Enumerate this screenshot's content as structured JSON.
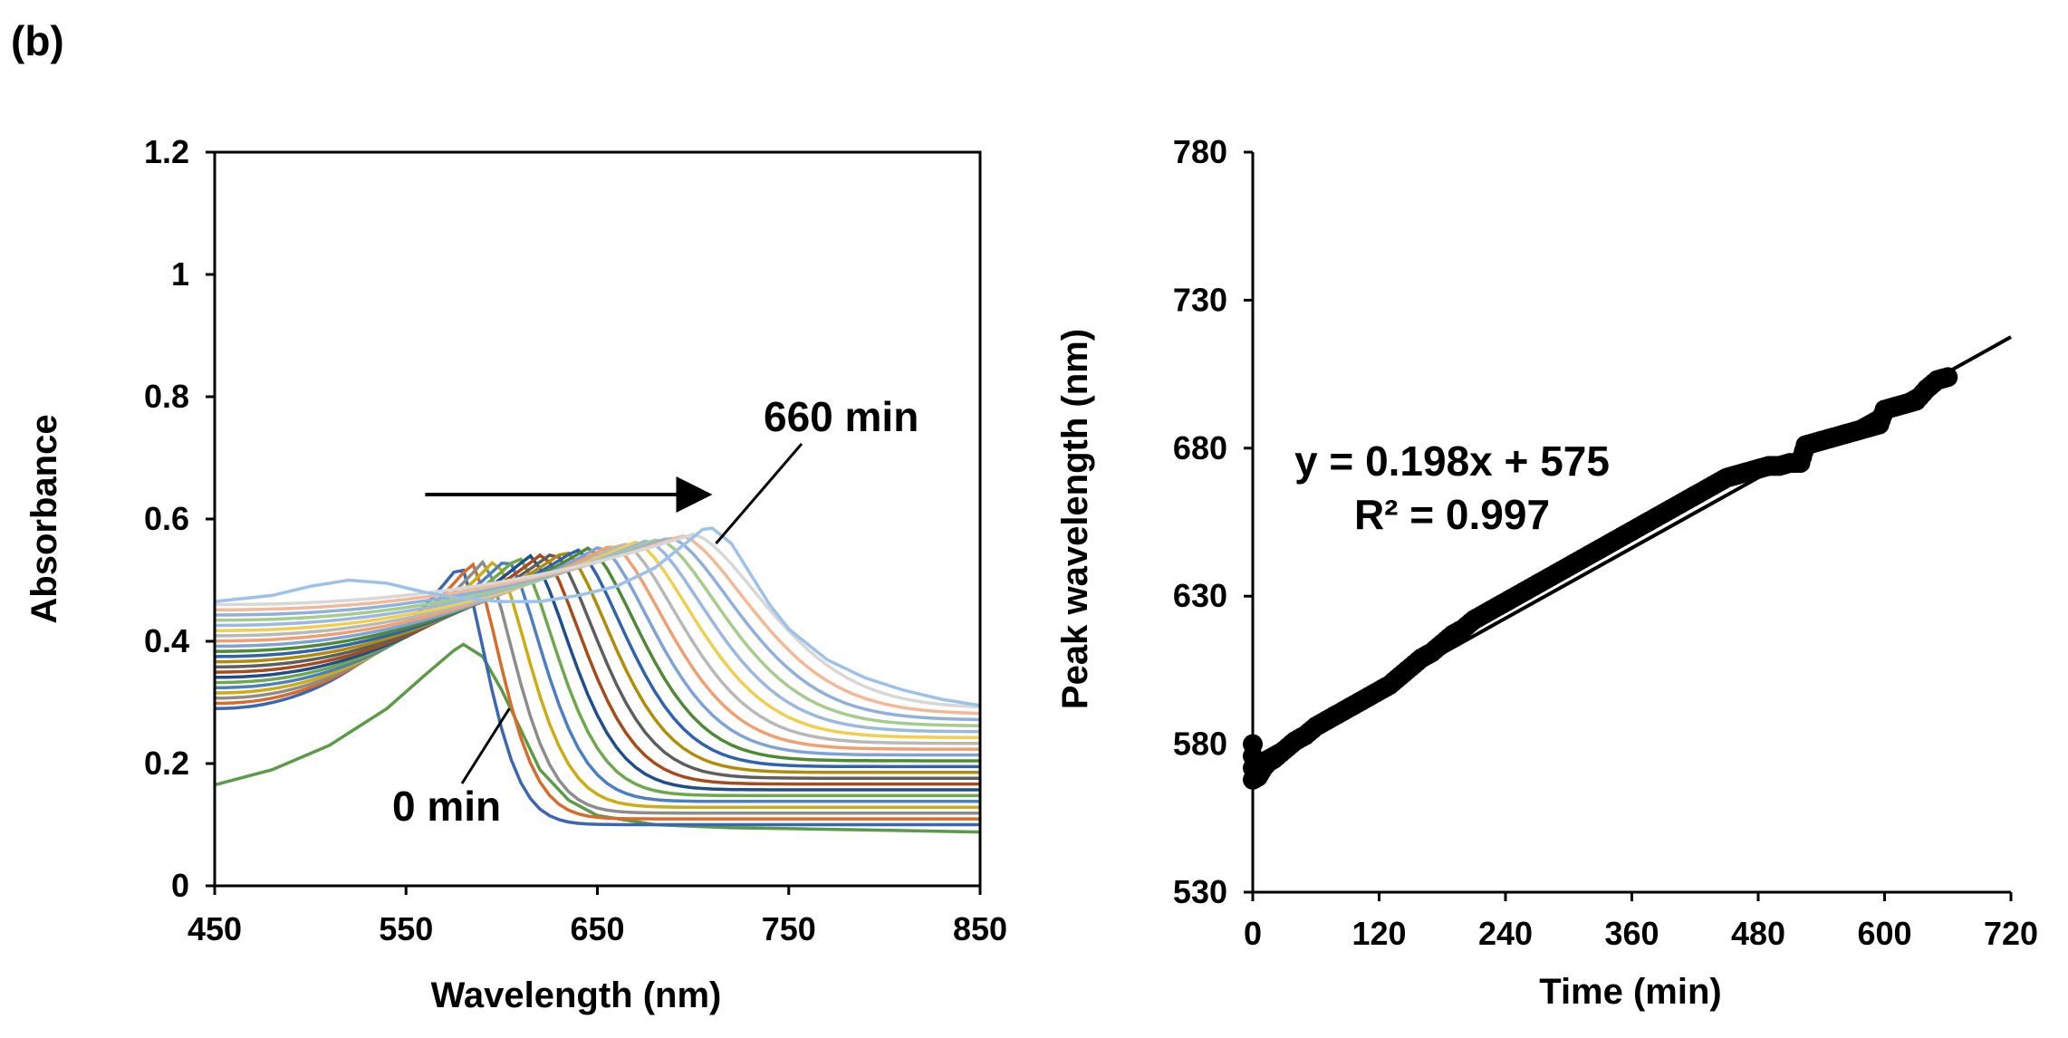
{
  "panel_label": "(b)",
  "chart_data": [
    {
      "type": "line",
      "title": "",
      "xlabel": "Wavelength (nm)",
      "ylabel": "Absorbance",
      "xlim": [
        450,
        850
      ],
      "ylim": [
        0,
        1.2
      ],
      "xticks": [
        "450",
        "550",
        "650",
        "750",
        "850"
      ],
      "yticks": [
        "0",
        "0.2",
        "0.4",
        "0.6",
        "0.8",
        "1",
        "1.2"
      ],
      "time_range_min": [
        0,
        660
      ],
      "spectrum_count": 23,
      "series_colors": [
        "#5b9a47",
        "#3c67b0",
        "#d86a2a",
        "#8c8c8c",
        "#ccac12",
        "#4a7fc2",
        "#6fa84c",
        "#1f4e8c",
        "#a84b1a",
        "#5e5e5e",
        "#b08c0a",
        "#2f63ad",
        "#4e8a34",
        "#7fa3d6",
        "#f0a070",
        "#b8b8b8",
        "#f0cf50",
        "#9bb8e2",
        "#a5cc8c",
        "#8fb0dd",
        "#f5b896",
        "#d7d7d7",
        "#9cc1ea"
      ],
      "series": [
        {
          "name": "0 min",
          "x": [
            450,
            480,
            510,
            540,
            560,
            575,
            580,
            590,
            600,
            610,
            620,
            635,
            650,
            680,
            720,
            760,
            800,
            850
          ],
          "y": [
            0.165,
            0.19,
            0.23,
            0.29,
            0.345,
            0.385,
            0.395,
            0.375,
            0.32,
            0.255,
            0.19,
            0.14,
            0.115,
            0.1,
            0.095,
            0.093,
            0.091,
            0.088
          ]
        },
        {
          "name": "660 min",
          "x": [
            450,
            480,
            500,
            520,
            540,
            560,
            580,
            600,
            620,
            640,
            660,
            680,
            690,
            700,
            705,
            710,
            720,
            730,
            740,
            750,
            770,
            790,
            810,
            830,
            850
          ],
          "y": [
            0.465,
            0.475,
            0.49,
            0.5,
            0.495,
            0.48,
            0.47,
            0.465,
            0.465,
            0.475,
            0.49,
            0.52,
            0.545,
            0.57,
            0.583,
            0.585,
            0.56,
            0.51,
            0.46,
            0.42,
            0.37,
            0.34,
            0.32,
            0.305,
            0.295
          ]
        }
      ],
      "annotations": [
        {
          "text": "660 min",
          "points_to": {
            "x": 712,
            "y": 0.56
          }
        },
        {
          "text": "0 min",
          "points_to": {
            "x": 604,
            "y": 0.29
          }
        },
        {
          "text": "arrow",
          "from": {
            "x": 560,
            "y": 0.64
          },
          "to": {
            "x": 712,
            "y": 0.64
          }
        }
      ]
    },
    {
      "type": "scatter",
      "title": "",
      "xlabel": "Time (min)",
      "ylabel": "Peak wavelength (nm)",
      "xlim": [
        0,
        720
      ],
      "ylim": [
        530,
        780
      ],
      "xticks": [
        "0",
        "120",
        "240",
        "360",
        "480",
        "600",
        "720"
      ],
      "yticks": [
        "530",
        "580",
        "630",
        "680",
        "730",
        "780"
      ],
      "points": [
        [
          0,
          580
        ],
        [
          0,
          568
        ],
        [
          5,
          569
        ],
        [
          10,
          572
        ],
        [
          15,
          574
        ],
        [
          20,
          575
        ],
        [
          30,
          578
        ],
        [
          40,
          581
        ],
        [
          50,
          583
        ],
        [
          60,
          586
        ],
        [
          70,
          588
        ],
        [
          80,
          590
        ],
        [
          90,
          592
        ],
        [
          100,
          594
        ],
        [
          110,
          596
        ],
        [
          120,
          598
        ],
        [
          130,
          600
        ],
        [
          140,
          603
        ],
        [
          150,
          606
        ],
        [
          160,
          609
        ],
        [
          170,
          611
        ],
        [
          180,
          614
        ],
        [
          190,
          617
        ],
        [
          200,
          619
        ],
        [
          210,
          622
        ],
        [
          220,
          624
        ],
        [
          230,
          626
        ],
        [
          240,
          628
        ],
        [
          250,
          630
        ],
        [
          260,
          632
        ],
        [
          270,
          634
        ],
        [
          280,
          636
        ],
        [
          290,
          638
        ],
        [
          300,
          640
        ],
        [
          310,
          642
        ],
        [
          320,
          644
        ],
        [
          330,
          646
        ],
        [
          340,
          648
        ],
        [
          350,
          650
        ],
        [
          360,
          652
        ],
        [
          370,
          654
        ],
        [
          380,
          656
        ],
        [
          390,
          658
        ],
        [
          400,
          660
        ],
        [
          410,
          662
        ],
        [
          420,
          664
        ],
        [
          430,
          666
        ],
        [
          440,
          668
        ],
        [
          450,
          670
        ],
        [
          460,
          671
        ],
        [
          470,
          672
        ],
        [
          480,
          673
        ],
        [
          490,
          674
        ],
        [
          500,
          674
        ],
        [
          510,
          675
        ],
        [
          520,
          675
        ],
        [
          525,
          681
        ],
        [
          535,
          682
        ],
        [
          545,
          683
        ],
        [
          555,
          684
        ],
        [
          565,
          685
        ],
        [
          575,
          686
        ],
        [
          585,
          687
        ],
        [
          595,
          688
        ],
        [
          600,
          693
        ],
        [
          610,
          694
        ],
        [
          620,
          695
        ],
        [
          630,
          696
        ],
        [
          640,
          700
        ],
        [
          650,
          703
        ],
        [
          660,
          704
        ]
      ],
      "trendline": {
        "slope": 0.198,
        "intercept": 575,
        "x_range": [
          0,
          720
        ]
      },
      "equation": "y = 0.198x + 575",
      "r_squared": "R² = 0.997"
    }
  ]
}
